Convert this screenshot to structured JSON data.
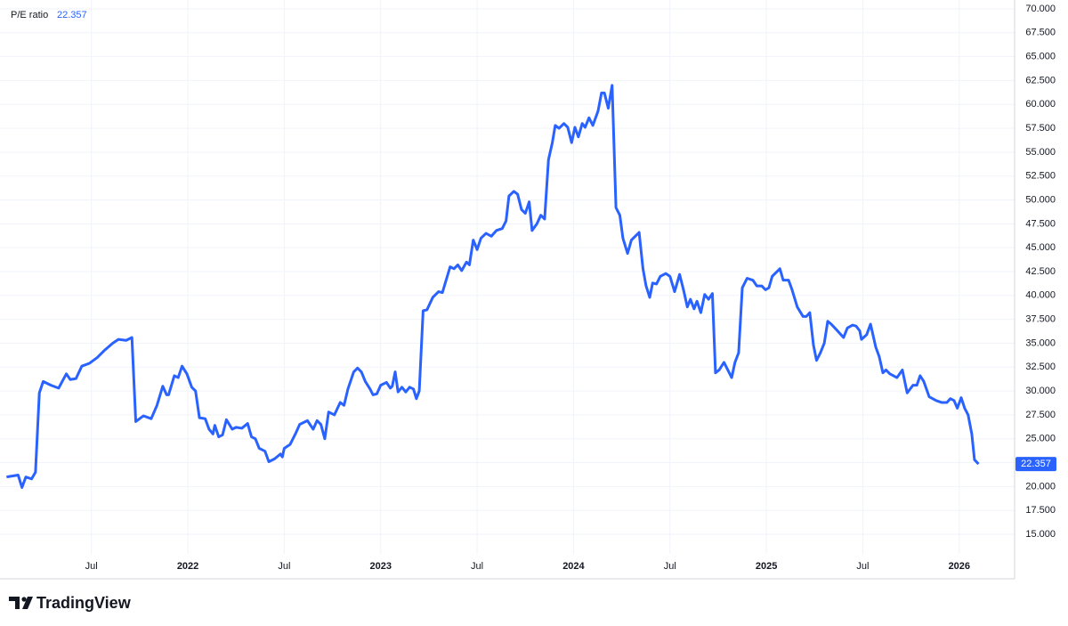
{
  "chart_data": {
    "type": "line",
    "logo_text": "TradingView",
    "x": [
      2021.06,
      2021.12,
      2021.14,
      2021.16,
      2021.19,
      2021.21,
      2021.23,
      2021.25,
      2021.29,
      2021.33,
      2021.37,
      2021.39,
      2021.42,
      2021.45,
      2021.49,
      2021.53,
      2021.57,
      2021.61,
      2021.64,
      2021.68,
      2021.71,
      2021.73,
      2021.77,
      2021.81,
      2021.84,
      2021.87,
      2021.89,
      2021.9,
      2021.93,
      2021.95,
      2021.97,
      2021.995,
      2022.02,
      2022.04,
      2022.06,
      2022.09,
      2022.11,
      2022.13,
      2022.14,
      2022.16,
      2022.18,
      2022.2,
      2022.23,
      2022.25,
      2022.28,
      2022.31,
      2022.33,
      2022.35,
      2022.37,
      2022.4,
      2022.42,
      2022.45,
      2022.48,
      2022.49,
      2022.5,
      2022.53,
      2022.56,
      2022.58,
      2022.62,
      2022.65,
      2022.67,
      2022.69,
      2022.71,
      2022.73,
      2022.76,
      2022.79,
      2022.81,
      2022.83,
      2022.86,
      2022.88,
      2022.9,
      2022.92,
      2022.945,
      2022.96,
      2022.98,
      2023.0,
      2023.03,
      2023.05,
      2023.06,
      2023.075,
      2023.09,
      2023.11,
      2023.13,
      2023.15,
      2023.17,
      2023.185,
      2023.2,
      2023.22,
      2023.24,
      2023.27,
      2023.3,
      2023.32,
      2023.36,
      2023.38,
      2023.4,
      2023.42,
      2023.445,
      2023.46,
      2023.48,
      2023.5,
      2023.52,
      2023.546,
      2023.574,
      2023.6,
      2023.63,
      2023.65,
      2023.665,
      2023.69,
      2023.71,
      2023.73,
      2023.75,
      2023.77,
      2023.785,
      2023.81,
      2023.83,
      2023.85,
      2023.87,
      2023.89,
      2023.905,
      2023.925,
      2023.95,
      2023.97,
      2023.99,
      2024.007,
      2024.025,
      2024.045,
      2024.06,
      2024.08,
      2024.1,
      2024.127,
      2024.145,
      2024.16,
      2024.18,
      2024.2,
      2024.22,
      2024.24,
      2024.256,
      2024.28,
      2024.3,
      2024.34,
      2024.36,
      2024.376,
      2024.395,
      2024.41,
      2024.43,
      2024.45,
      2024.478,
      2024.5,
      2024.524,
      2024.55,
      2024.57,
      2024.59,
      2024.606,
      2024.625,
      2024.64,
      2024.66,
      2024.68,
      2024.7,
      2024.72,
      2024.736,
      2024.755,
      2024.78,
      2024.82,
      2024.837,
      2024.856,
      2024.875,
      2024.9,
      2024.93,
      2024.95,
      2024.976,
      2024.995,
      2025.013,
      2025.03,
      2025.07,
      2025.087,
      2025.115,
      2025.133,
      2025.16,
      2025.19,
      2025.207,
      2025.225,
      2025.244,
      2025.26,
      2025.28,
      2025.3,
      2025.318,
      2025.336,
      2025.364,
      2025.382,
      2025.4,
      2025.42,
      2025.447,
      2025.465,
      2025.484,
      2025.493,
      2025.52,
      2025.54,
      2025.567,
      2025.585,
      2025.604,
      2025.62,
      2025.64,
      2025.677,
      2025.705,
      2025.73,
      2025.76,
      2025.78,
      2025.797,
      2025.816,
      2025.844,
      2025.88,
      2025.908,
      2025.936,
      2025.954,
      2025.973,
      2025.99,
      2026.01,
      2026.028,
      2026.046,
      2026.065,
      2026.079,
      2026.1
    ],
    "series": [
      {
        "name": "P/E ratio",
        "color": "#2962ff",
        "values": [
          21.0,
          21.2,
          19.9,
          21.0,
          20.8,
          21.5,
          29.8,
          31.0,
          30.6,
          30.3,
          31.8,
          31.2,
          31.3,
          32.6,
          32.9,
          33.5,
          34.3,
          35.0,
          35.4,
          35.3,
          35.6,
          26.8,
          27.4,
          27.1,
          28.5,
          30.5,
          29.6,
          29.6,
          31.6,
          31.4,
          32.6,
          31.8,
          30.4,
          30.0,
          27.2,
          27.1,
          26.0,
          25.5,
          26.4,
          25.2,
          25.4,
          27.0,
          26.0,
          26.2,
          26.1,
          26.6,
          25.2,
          25.0,
          24.0,
          23.7,
          22.6,
          22.9,
          23.4,
          23.1,
          24.0,
          24.4,
          25.6,
          26.5,
          26.9,
          26.0,
          26.9,
          26.5,
          25.0,
          27.8,
          27.5,
          28.8,
          28.5,
          30.2,
          32.0,
          32.4,
          32.0,
          31.0,
          30.2,
          29.6,
          29.7,
          30.6,
          30.9,
          30.3,
          30.5,
          32.0,
          29.9,
          30.4,
          29.9,
          30.4,
          30.2,
          29.2,
          30.0,
          38.4,
          38.5,
          39.8,
          40.4,
          40.3,
          43.0,
          42.8,
          43.2,
          42.6,
          43.5,
          43.2,
          45.8,
          44.8,
          46.0,
          46.5,
          46.2,
          46.8,
          47.0,
          47.8,
          50.4,
          50.9,
          50.6,
          49.0,
          48.6,
          49.8,
          46.8,
          47.5,
          48.4,
          48.0,
          54.2,
          56.0,
          57.8,
          57.5,
          58.0,
          57.6,
          56.0,
          57.6,
          56.6,
          58.0,
          57.6,
          58.6,
          57.8,
          59.3,
          61.2,
          61.2,
          59.6,
          62.0,
          49.2,
          48.4,
          46.0,
          44.4,
          45.8,
          46.6,
          42.8,
          41.0,
          39.8,
          41.3,
          41.2,
          42.0,
          42.3,
          42.0,
          40.4,
          42.2,
          40.6,
          38.8,
          39.6,
          38.6,
          39.4,
          38.2,
          40.1,
          39.6,
          40.2,
          31.9,
          32.2,
          33.0,
          31.4,
          33.0,
          34.0,
          40.8,
          41.8,
          41.6,
          41.0,
          41.0,
          40.6,
          40.8,
          42.0,
          42.8,
          41.6,
          41.6,
          40.6,
          38.8,
          37.8,
          37.8,
          38.2,
          34.8,
          33.2,
          34.0,
          35.0,
          37.3,
          37.0,
          36.4,
          36.0,
          35.6,
          36.6,
          36.9,
          36.8,
          36.3,
          35.4,
          35.9,
          37.0,
          34.6,
          33.6,
          31.9,
          32.2,
          31.8,
          31.4,
          32.2,
          29.8,
          30.6,
          30.6,
          31.6,
          31.0,
          29.4,
          29.0,
          28.8,
          28.8,
          29.2,
          29.0,
          28.2,
          29.3,
          28.2,
          27.5,
          25.5,
          22.8,
          22.357
        ]
      }
    ],
    "xlim": [
      2021.026,
      2026.287
    ],
    "xticks": [
      {
        "value": 2021.5,
        "label": "Jul"
      },
      {
        "value": 2022,
        "label": "2022"
      },
      {
        "value": 2022.5,
        "label": "Jul"
      },
      {
        "value": 2023,
        "label": "2023"
      },
      {
        "value": 2023.5,
        "label": "Jul"
      },
      {
        "value": 2024,
        "label": "2024"
      },
      {
        "value": 2024.5,
        "label": "Jul"
      },
      {
        "value": 2025,
        "label": "2025"
      },
      {
        "value": 2025.5,
        "label": "Jul"
      },
      {
        "value": 2026,
        "label": "2026"
      }
    ],
    "ylim": [
      12.95,
      70.93
    ],
    "yticks": [
      {
        "value": 15,
        "label": "15.000"
      },
      {
        "value": 17.5,
        "label": "17.500"
      },
      {
        "value": 20,
        "label": "20.000"
      },
      {
        "value": 22.5,
        "label": "22.500"
      },
      {
        "value": 25,
        "label": "25.000"
      },
      {
        "value": 27.5,
        "label": "27.500"
      },
      {
        "value": 30,
        "label": "30.000"
      },
      {
        "value": 32.5,
        "label": "32.500"
      },
      {
        "value": 35,
        "label": "35.000"
      },
      {
        "value": 37.5,
        "label": "37.500"
      },
      {
        "value": 40,
        "label": "40.000"
      },
      {
        "value": 42.5,
        "label": "42.500"
      },
      {
        "value": 45,
        "label": "45.000"
      },
      {
        "value": 47.5,
        "label": "47.500"
      },
      {
        "value": 50,
        "label": "50.000"
      },
      {
        "value": 52.5,
        "label": "52.500"
      },
      {
        "value": 55,
        "label": "55.000"
      },
      {
        "value": 57.5,
        "label": "57.500"
      },
      {
        "value": 60,
        "label": "60.000"
      },
      {
        "value": 62.5,
        "label": "62.500"
      },
      {
        "value": 65,
        "label": "65.000"
      },
      {
        "value": 67.5,
        "label": "67.500"
      },
      {
        "value": 70,
        "label": "70.000"
      }
    ],
    "grid": true
  }
}
